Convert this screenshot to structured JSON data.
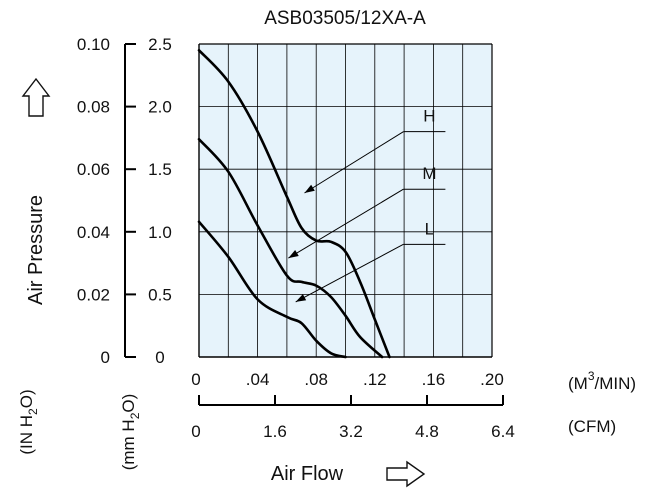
{
  "colors": {
    "plot_background": "#e6f3fb",
    "grid": "#000000",
    "curve": "#000000"
  },
  "icons": {
    "y_axis": "outline-arrow-up-icon",
    "x_axis": "outline-arrow-right-icon"
  },
  "chart_data": {
    "type": "line",
    "title": "ASB03505/12XA-A",
    "xlabel": "Air Flow",
    "ylabel": "Air Pressure",
    "x_axis_top": {
      "unit": "(M³/MIN)",
      "unit_text": "(M",
      "unit_sup": "3",
      "unit_tail": "/MIN)",
      "ticks": [
        {
          "value": 0,
          "label": "0"
        },
        {
          "value": 0.04,
          "label": ".04"
        },
        {
          "value": 0.08,
          "label": ".08"
        },
        {
          "value": 0.12,
          "label": ".12"
        },
        {
          "value": 0.16,
          "label": ".16"
        },
        {
          "value": 0.2,
          "label": ".20"
        }
      ],
      "xlim": [
        0,
        0.2
      ]
    },
    "x_axis_bottom": {
      "unit": "(CFM)",
      "ticks": [
        {
          "value": 0,
          "label": "0"
        },
        {
          "value": 1.6,
          "label": "1.6"
        },
        {
          "value": 3.2,
          "label": "3.2"
        },
        {
          "value": 4.8,
          "label": "4.8"
        },
        {
          "value": 6.4,
          "label": "6.4"
        }
      ]
    },
    "y_axis_mm": {
      "unit_parts": [
        "(mm H",
        "2",
        "O)"
      ],
      "ticks": [
        {
          "value": 0,
          "label": "0"
        },
        {
          "value": 0.5,
          "label": "0.5"
        },
        {
          "value": 1.0,
          "label": "1.0"
        },
        {
          "value": 1.5,
          "label": "1.5"
        },
        {
          "value": 2.0,
          "label": "2.0"
        },
        {
          "value": 2.5,
          "label": "2.5"
        }
      ],
      "ylim": [
        0,
        2.5
      ]
    },
    "y_axis_in": {
      "unit_parts": [
        "(IN H",
        "2",
        "O)"
      ],
      "ticks": [
        {
          "value": 0,
          "label": "0"
        },
        {
          "value": 0.02,
          "label": "0.02"
        },
        {
          "value": 0.04,
          "label": "0.04"
        },
        {
          "value": 0.06,
          "label": "0.06"
        },
        {
          "value": 0.08,
          "label": "0.08"
        },
        {
          "value": 0.1,
          "label": "0.10"
        }
      ]
    },
    "grid": true,
    "series": [
      {
        "name": "H",
        "x": [
          0,
          0.02,
          0.04,
          0.06,
          0.07,
          0.08,
          0.09,
          0.1,
          0.11,
          0.12,
          0.13
        ],
        "y": [
          2.45,
          2.2,
          1.8,
          1.28,
          1.03,
          0.93,
          0.92,
          0.84,
          0.6,
          0.3,
          0.0
        ]
      },
      {
        "name": "M",
        "x": [
          0,
          0.02,
          0.04,
          0.06,
          0.07,
          0.08,
          0.09,
          0.1,
          0.11,
          0.125
        ],
        "y": [
          1.74,
          1.48,
          1.05,
          0.65,
          0.6,
          0.57,
          0.48,
          0.33,
          0.16,
          0.0
        ]
      },
      {
        "name": "L",
        "x": [
          0,
          0.02,
          0.04,
          0.06,
          0.07,
          0.08,
          0.09,
          0.1
        ],
        "y": [
          1.08,
          0.8,
          0.46,
          0.32,
          0.27,
          0.13,
          0.03,
          0.0
        ]
      }
    ],
    "annotations": [
      {
        "series": "H",
        "label": "H",
        "arrow_tip": {
          "x": 0.072,
          "y": 1.31
        },
        "label_at": {
          "x": 0.16,
          "y": 1.8
        }
      },
      {
        "series": "M",
        "label": "M",
        "arrow_tip": {
          "x": 0.061,
          "y": 0.79
        },
        "label_at": {
          "x": 0.16,
          "y": 1.34
        }
      },
      {
        "series": "L",
        "label": "L",
        "arrow_tip": {
          "x": 0.066,
          "y": 0.44
        },
        "label_at": {
          "x": 0.16,
          "y": 0.9
        }
      }
    ]
  }
}
